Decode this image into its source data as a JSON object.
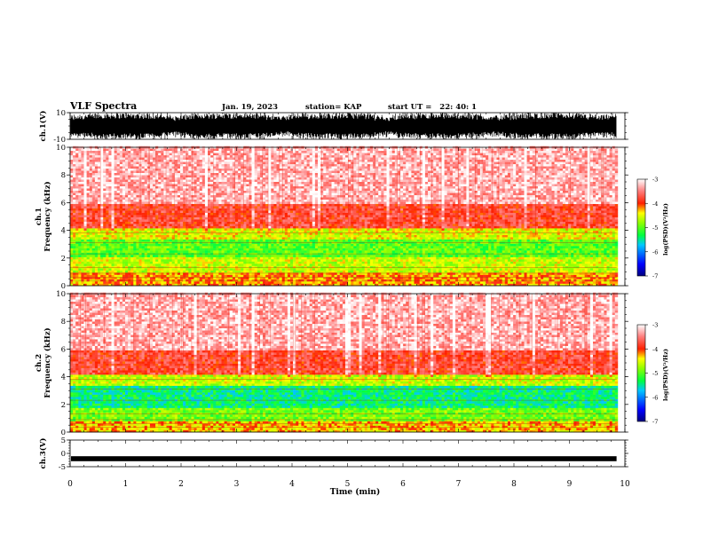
{
  "header": {
    "title": "VLF Spectra",
    "date": "Jan. 19, 2023",
    "station": "station= KAP",
    "start": "start UT =   22: 40: 1"
  },
  "chart_data": [
    {
      "type": "line",
      "name": "ch1-waveform",
      "ylabel": "ch.1(V)",
      "ylim": [
        -10,
        10
      ],
      "y_ticks": [
        "10",
        "-10"
      ],
      "xlim": [
        0,
        10
      ],
      "duration_min": 9.85,
      "envelope_note": "dense saturated waveform, amplitude roughly +/-10 V"
    },
    {
      "type": "heatmap",
      "name": "ch1-spectrogram",
      "ylabel": "ch.1\nFrequency (kHz)",
      "ylim": [
        0,
        10
      ],
      "y_ticks": [
        "0",
        "2",
        "4",
        "6",
        "8",
        "10"
      ],
      "xlim": [
        0,
        10
      ],
      "bands_kHz": [
        {
          "from": 0.0,
          "to": 1.0,
          "log_psd": -4.2
        },
        {
          "from": 1.0,
          "to": 2.0,
          "log_psd": -4.6
        },
        {
          "from": 2.0,
          "to": 3.4,
          "log_psd": -5.0
        },
        {
          "from": 3.4,
          "to": 4.2,
          "log_psd": -4.5
        },
        {
          "from": 4.2,
          "to": 6.0,
          "log_psd": -3.8
        },
        {
          "from": 6.0,
          "to": 10.0,
          "log_psd": -3.3
        }
      ],
      "colorbar": {
        "label": "log(PSD)(V²/Hz)",
        "range": [
          -7,
          -3
        ],
        "ticks": [
          "-3",
          "-4",
          "-5",
          "-6",
          "-7"
        ]
      }
    },
    {
      "type": "heatmap",
      "name": "ch2-spectrogram",
      "ylabel": "ch.2\nFrequency (kHz)",
      "ylim": [
        0,
        10
      ],
      "y_ticks": [
        "0",
        "2",
        "4",
        "6",
        "8",
        "10"
      ],
      "xlim": [
        0,
        10
      ],
      "bands_kHz": [
        {
          "from": 0.0,
          "to": 0.8,
          "log_psd": -4.3
        },
        {
          "from": 0.8,
          "to": 1.8,
          "log_psd": -4.9
        },
        {
          "from": 1.8,
          "to": 3.3,
          "log_psd": -5.4
        },
        {
          "from": 3.3,
          "to": 4.2,
          "log_psd": -4.6
        },
        {
          "from": 4.2,
          "to": 6.0,
          "log_psd": -3.8
        },
        {
          "from": 6.0,
          "to": 10.0,
          "log_psd": -3.3
        }
      ],
      "colorbar": {
        "label": "log(PSD)(V²/Hz)",
        "range": [
          -7,
          -3
        ],
        "ticks": [
          "-3",
          "-4",
          "-5",
          "-6",
          "-7"
        ]
      }
    },
    {
      "type": "line",
      "name": "ch3-waveform",
      "ylabel": "ch.3(V)",
      "ylim": [
        -5,
        5
      ],
      "y_ticks": [
        "5",
        "0",
        "-5"
      ],
      "xlim": [
        0,
        10
      ],
      "level_V": -2.0,
      "duration_min": 9.85
    }
  ],
  "xaxis": {
    "label": "Time (min)",
    "ticks": [
      "0",
      "1",
      "2",
      "3",
      "4",
      "5",
      "6",
      "7",
      "8",
      "9",
      "10"
    ]
  },
  "colors": {
    "psd_scale": [
      "#00007f",
      "#0000ff",
      "#00ffff",
      "#00ff00",
      "#ffff00",
      "#ff0000",
      "#ffffff"
    ]
  }
}
